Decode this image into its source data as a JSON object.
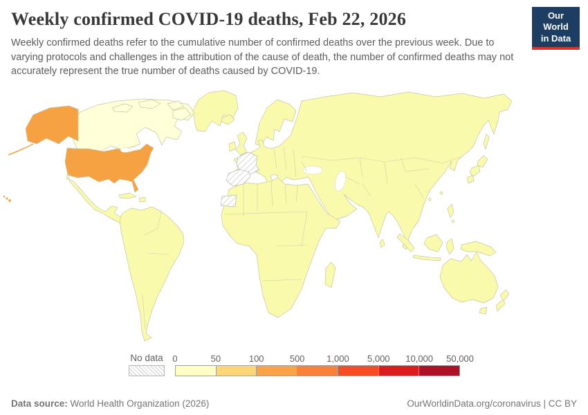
{
  "header": {
    "title": "Weekly confirmed COVID-19 deaths, Feb 22, 2026",
    "subtitle": "Weekly confirmed deaths refer to the cumulative number of confirmed deaths over the previous week. Due to varying protocols and challenges in the attribution of the cause of death, the number of confirmed deaths may not accurately represent the true number of deaths caused by COVID-19.",
    "logo": {
      "line1": "Our World",
      "line2": "in Data",
      "bg": "#1d3d63",
      "stripe": "#d7352e"
    }
  },
  "legend": {
    "no_data_label": "No data",
    "ticks": [
      "0",
      "50",
      "100",
      "500",
      "1,000",
      "5,000",
      "10,000",
      "50,000"
    ],
    "colors": [
      "#ffffc6",
      "#fed676",
      "#faa346",
      "#fb8038",
      "#f74d24",
      "#dd1c20",
      "#ae1028"
    ]
  },
  "map": {
    "colors": {
      "default": "#fafaad",
      "light": "#ffffd8",
      "usa": "#f6a243",
      "border": "#c6c6a8",
      "hatch_line": "#c9c9c9"
    }
  },
  "chart_data": {
    "type": "choropleth-map",
    "title": "Weekly confirmed COVID-19 deaths, Feb 22, 2026",
    "date_shown": "Feb 22, 2026",
    "legend_tick_labels": [
      "0",
      "50",
      "100",
      "500",
      "1,000",
      "5,000",
      "10,000",
      "50,000"
    ],
    "legend_bin_colors": [
      "#ffffc6",
      "#fed676",
      "#faa346",
      "#fb8038",
      "#f74d24",
      "#dd1c20",
      "#ae1028"
    ],
    "no_data_label": "No data",
    "values": [
      {
        "region": "United States (incl. Alaska and Hawaii)",
        "bin": "100-500",
        "color": "#f6a243"
      },
      {
        "region": "Canada",
        "bin": "0-50",
        "color": "#ffffd8"
      },
      {
        "region": "France",
        "bin": "No data",
        "style": "gray-hatched"
      },
      {
        "region": "Spain",
        "bin": "No data",
        "style": "gray-hatched"
      },
      {
        "region": "Western Sahara",
        "bin": "No data",
        "style": "gray-hatched"
      },
      {
        "region": "All other countries shown",
        "bin": "0-50",
        "color": "#fafaad"
      }
    ],
    "source": "World Health Organization (2026)"
  },
  "footer": {
    "source_label": "Data source:",
    "source_text": " World Health Organization (2026)",
    "link_text": "OurWorldinData.org/coronavirus | CC BY"
  }
}
